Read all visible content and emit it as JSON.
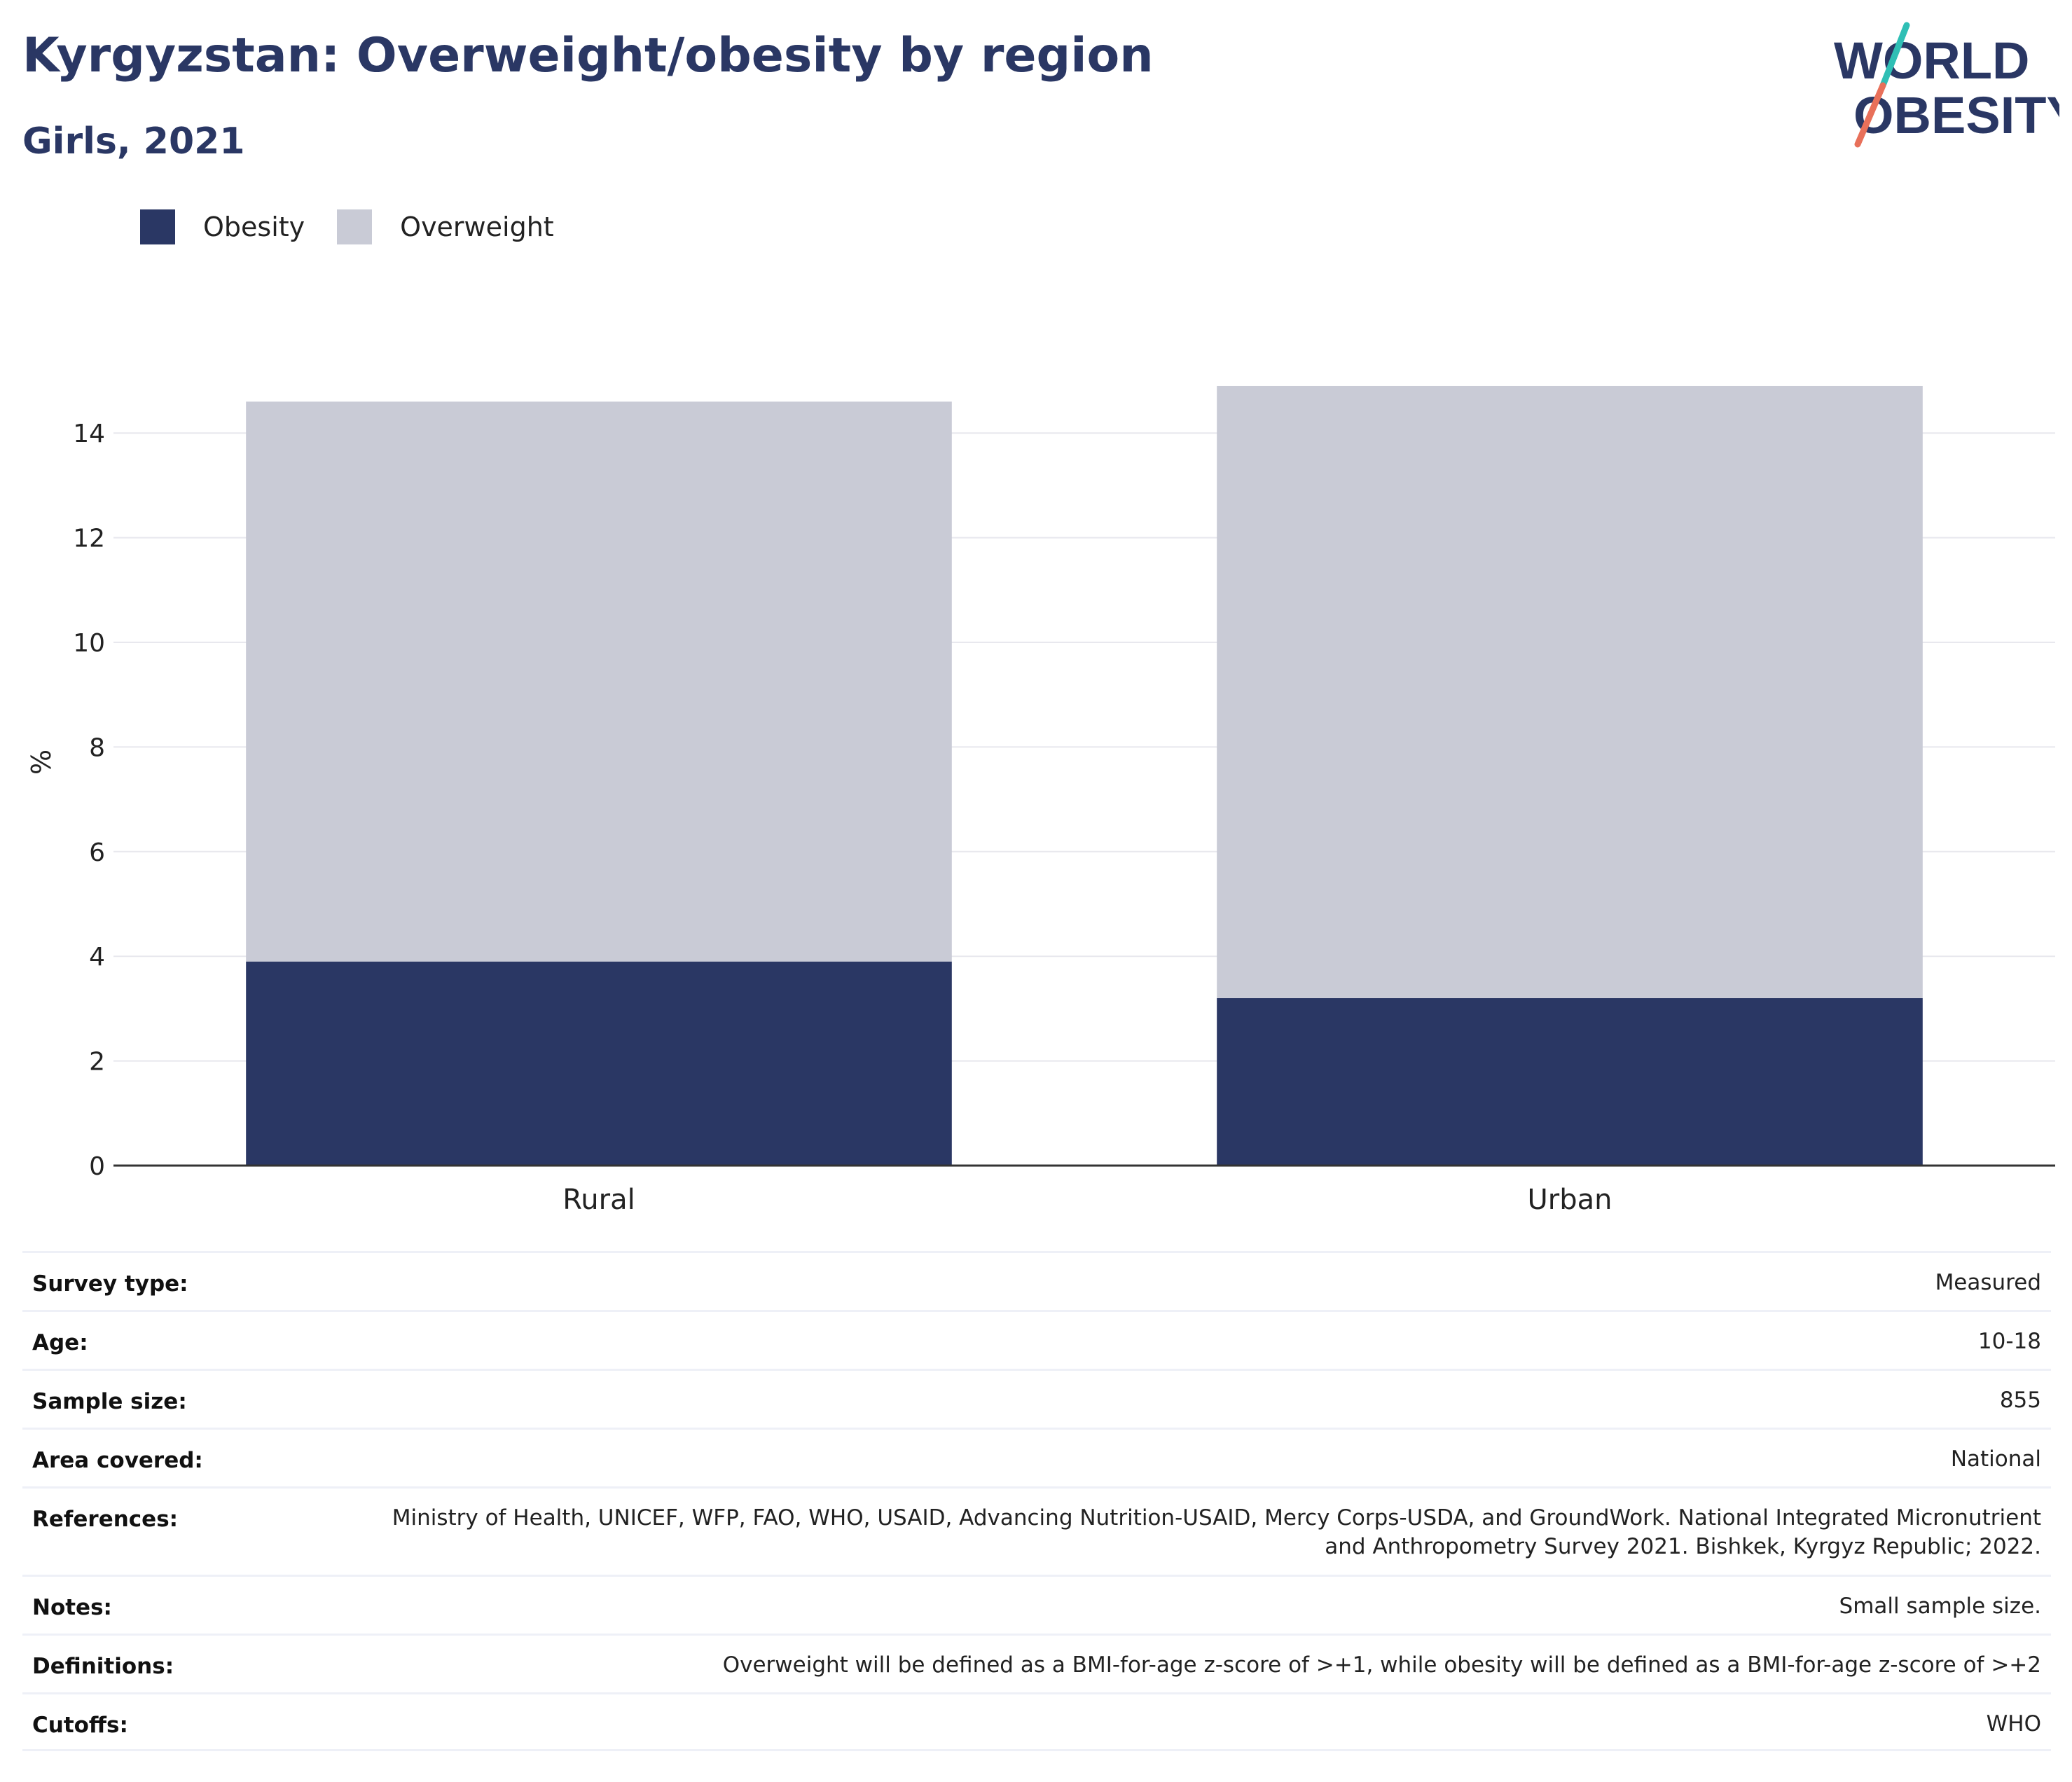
{
  "header": {
    "title": "Kyrgyzstan: Overweight/obesity by region",
    "subtitle": "Girls, 2021"
  },
  "logo": {
    "line1": "WORLD",
    "line2": "OBESITY"
  },
  "legend": [
    {
      "label": "Obesity",
      "color": "#2a3764"
    },
    {
      "label": "Overweight",
      "color": "#c9cbd6"
    }
  ],
  "chart_data": {
    "type": "bar",
    "stacked": true,
    "categories": [
      "Rural",
      "Urban"
    ],
    "series": [
      {
        "name": "Obesity",
        "values": [
          3.9,
          3.2
        ],
        "color": "#2a3764"
      },
      {
        "name": "Overweight",
        "values": [
          10.7,
          11.7
        ],
        "color": "#c9cbd6"
      }
    ],
    "ylabel": "%",
    "xlabel": "",
    "ylim": [
      0,
      15
    ],
    "yticks": [
      0,
      2,
      4,
      6,
      8,
      10,
      12,
      14
    ],
    "grid": true,
    "legend_position": "top-left"
  },
  "info": [
    {
      "key": "Survey type:",
      "value": "Measured"
    },
    {
      "key": "Age:",
      "value": "10-18"
    },
    {
      "key": "Sample size:",
      "value": "855"
    },
    {
      "key": "Area covered:",
      "value": "National"
    },
    {
      "key": "References:",
      "value": "Ministry of Health, UNICEF, WFP, FAO, WHO, USAID, Advancing Nutrition-USAID, Mercy Corps-USDA, and GroundWork. National Integrated Micronutrient and Anthropometry Survey 2021. Bishkek, Kyrgyz Republic; 2022."
    },
    {
      "key": "Notes:",
      "value": "Small sample size."
    },
    {
      "key": "Definitions:",
      "value": "Overweight will be defined as a BMI-for-age z-score of >+1, while obesity will be defined as a BMI-for-age z-score of >+2"
    },
    {
      "key": "Cutoffs:",
      "value": "WHO"
    }
  ]
}
